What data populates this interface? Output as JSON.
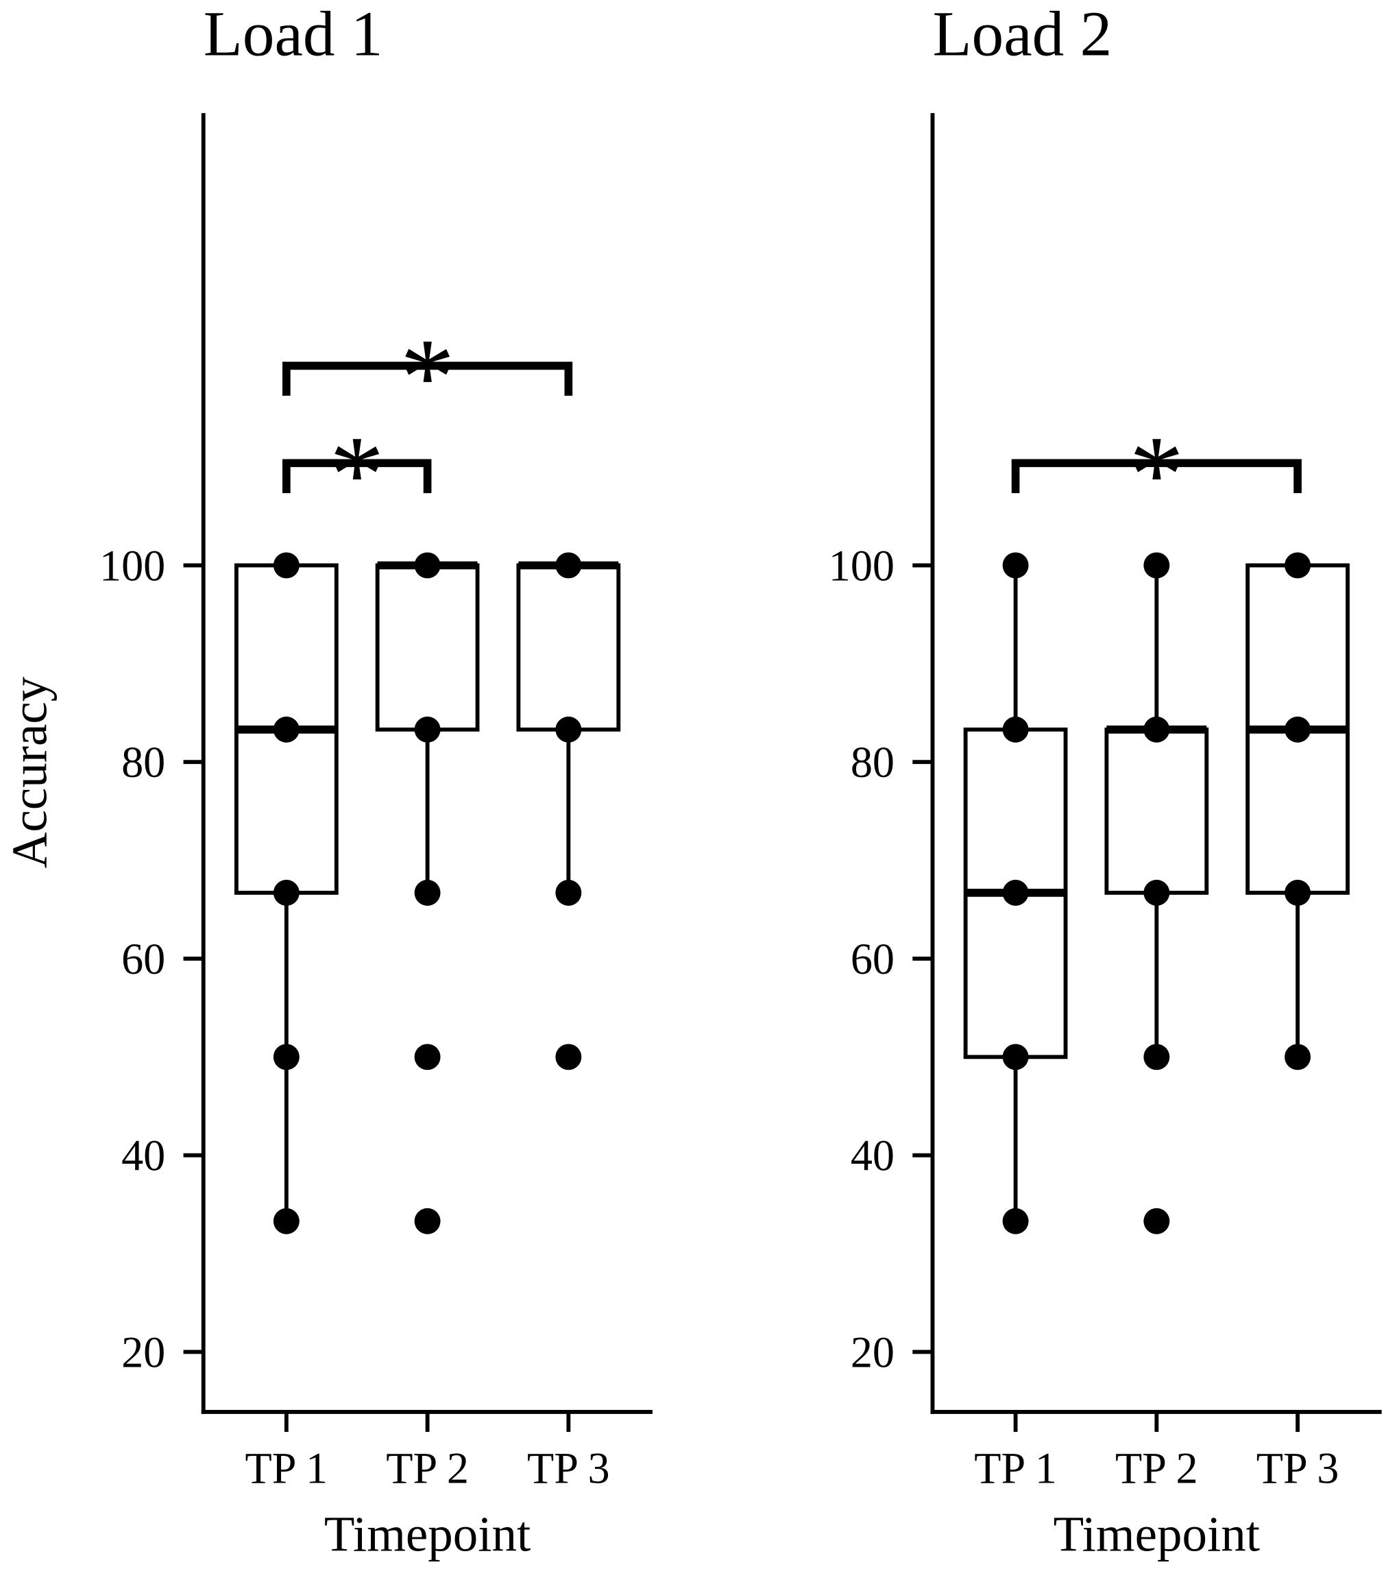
{
  "chart_data": [
    {
      "type": "box",
      "title": "Load 1",
      "ylabel": "Accuracy",
      "xlabel": "Timepoint",
      "categories": [
        "TP 1",
        "TP 2",
        "TP 3"
      ],
      "ylim": [
        13.9,
        146
      ],
      "yticks": [
        20,
        40,
        60,
        80,
        100
      ],
      "boxes": [
        {
          "whisker_low": 33.3,
          "q1": 66.7,
          "median": 83.3,
          "q3": 100,
          "whisker_high": 100,
          "points": [
            100,
            83.3,
            66.7,
            50,
            33.3
          ]
        },
        {
          "whisker_low": 66.7,
          "q1": 83.3,
          "median": 100,
          "q3": 100,
          "whisker_high": 100,
          "points": [
            100,
            83.3,
            66.7,
            50,
            33.3
          ]
        },
        {
          "whisker_low": 66.7,
          "q1": 83.3,
          "median": 100,
          "q3": 100,
          "whisker_high": 100,
          "points": [
            100,
            83.3,
            66.7,
            50
          ]
        }
      ],
      "annotations": [
        {
          "from": 0,
          "to": 1,
          "label": "*",
          "y": 110.4
        },
        {
          "from": 0,
          "to": 2,
          "label": "*",
          "y": 120.3
        }
      ]
    },
    {
      "type": "box",
      "title": "Load 2",
      "xlabel": "Timepoint",
      "categories": [
        "TP 1",
        "TP 2",
        "TP 3"
      ],
      "ylim": [
        13.9,
        146
      ],
      "yticks": [
        20,
        40,
        60,
        80,
        100
      ],
      "boxes": [
        {
          "whisker_low": 33.3,
          "q1": 50,
          "median": 66.7,
          "q3": 83.3,
          "whisker_high": 100,
          "points": [
            100,
            83.3,
            66.7,
            50,
            33.3
          ]
        },
        {
          "whisker_low": 50,
          "q1": 66.7,
          "median": 83.3,
          "q3": 83.3,
          "whisker_high": 100,
          "points": [
            100,
            83.3,
            66.7,
            50,
            33.3
          ]
        },
        {
          "whisker_low": 50,
          "q1": 66.7,
          "median": 83.3,
          "q3": 100,
          "whisker_high": 100,
          "points": [
            100,
            83.3,
            66.7,
            50
          ]
        }
      ],
      "annotations": [
        {
          "from": 0,
          "to": 2,
          "label": "*",
          "y": 110.4
        }
      ]
    }
  ]
}
